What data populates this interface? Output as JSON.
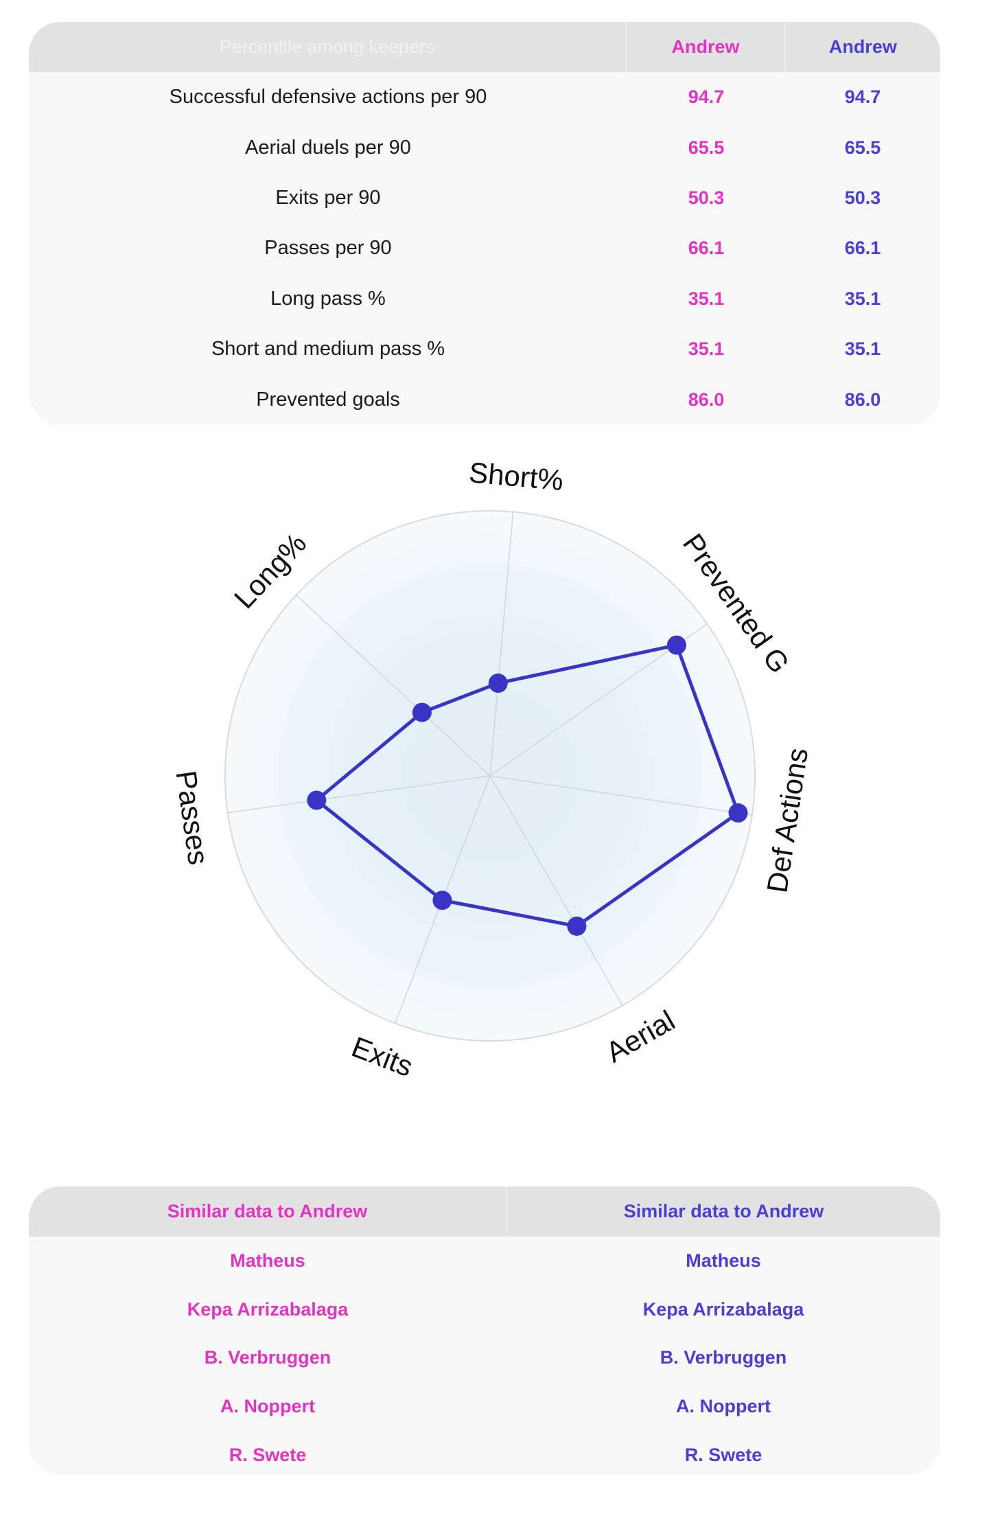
{
  "stats_table": {
    "header": {
      "metric": "Percentile among keepers",
      "player_a": "Andrew",
      "player_b": "Andrew"
    },
    "rows": [
      {
        "label": "Successful defensive actions per 90",
        "a": "94.7",
        "b": "94.7"
      },
      {
        "label": "Aerial duels per 90",
        "a": "65.5",
        "b": "65.5"
      },
      {
        "label": "Exits per 90",
        "a": "50.3",
        "b": "50.3"
      },
      {
        "label": "Passes per 90",
        "a": "66.1",
        "b": "66.1"
      },
      {
        "label": "Long pass %",
        "a": "35.1",
        "b": "35.1"
      },
      {
        "label": "Short and medium pass %",
        "a": "35.1",
        "b": "35.1"
      },
      {
        "label": "Prevented goals",
        "a": "86.0",
        "b": "86.0"
      }
    ]
  },
  "chart_data": {
    "type": "radar",
    "axes": [
      "Def Actions",
      "Aerial",
      "Exits",
      "Passes",
      "Long%",
      "Short%",
      "Prevented G"
    ],
    "range": [
      0,
      100
    ],
    "grid": true,
    "series": [
      {
        "values": [
          94.7,
          65.5,
          50.3,
          66.1,
          35.1,
          35.1,
          86.0
        ],
        "color": "#3a34c6"
      }
    ]
  },
  "similar_table": {
    "header": {
      "player_a": "Similar data to Andrew",
      "player_b": "Similar data to Andrew"
    },
    "rows": [
      {
        "a": "Matheus",
        "b": "Matheus"
      },
      {
        "a": "Kepa Arrizabalaga",
        "b": "Kepa Arrizabalaga"
      },
      {
        "a": "B. Verbruggen",
        "b": "B. Verbruggen"
      },
      {
        "a": "A. Noppert",
        "b": "A. Noppert"
      },
      {
        "a": "R. Swete",
        "b": "R. Swete"
      }
    ]
  },
  "colors": {
    "player_a": "#e233c2",
    "player_b": "#4a3ed4"
  }
}
